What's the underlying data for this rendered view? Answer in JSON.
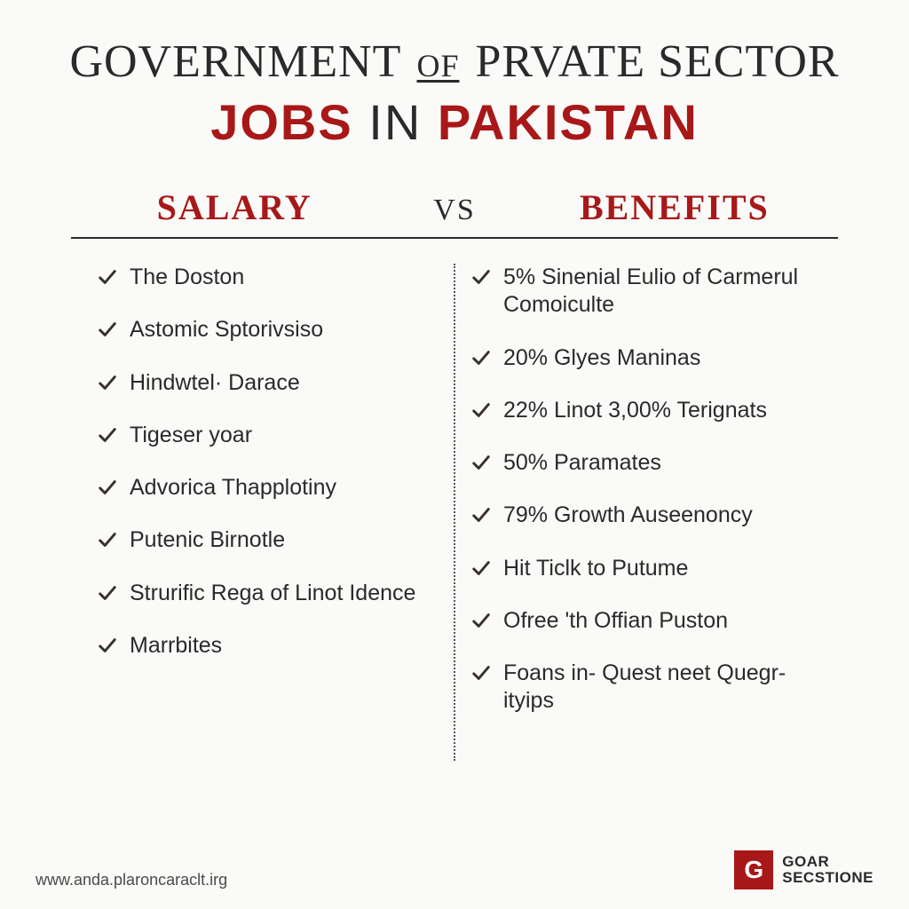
{
  "colors": {
    "accent": "#a81818",
    "text": "#2a2a2a",
    "background": "#fafaf8",
    "check": "#3a3030"
  },
  "title": {
    "line1_part1": "GOVERNMENT",
    "line1_of": "OF",
    "line1_part2": "PRVATE SECTOR",
    "line2_red1": "JOBS",
    "line2_dark": "IN",
    "line2_red2": "PAKISTAN"
  },
  "comparison": {
    "left_heading": "SALARY",
    "vs": "VS",
    "right_heading": "BENEFITS",
    "left_items": [
      "The Doston",
      "Astomic Sptorivsiso",
      "Hindwtel· Darace",
      "Tigeser yoar",
      "Advorica Thapplotiny",
      "Putenic Birnotle",
      "Strurific Rega of Linot Idence",
      "Marrbites"
    ],
    "right_items": [
      "5% Sinenial Eulio of Carmerul Comoiculte",
      "20% Glyes Maninas",
      "22% Linot 3,00% Terignats",
      "50% Paramates",
      "79% Growth Auseenoncy",
      "Hit Ticlk to Putume",
      "Ofree 'th Offian Puston",
      "Foans in- Quest neet Quegr-ityips"
    ]
  },
  "footer": {
    "url": "www.anda.plaroncaraclt.irg",
    "logo_letter": "G",
    "logo_line1": "GOAR",
    "logo_line2": "SECSTIONE"
  }
}
